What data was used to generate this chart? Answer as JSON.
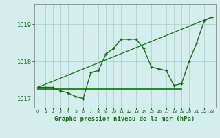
{
  "title": "Graphe pression niveau de la mer (hPa)",
  "x_values": [
    0,
    1,
    2,
    3,
    4,
    5,
    6,
    7,
    8,
    9,
    10,
    11,
    12,
    13,
    14,
    15,
    16,
    17,
    18,
    19,
    20,
    21,
    22,
    23
  ],
  "pressure_line": [
    1017.3,
    1017.3,
    1017.3,
    1017.2,
    1017.15,
    1017.05,
    1017.0,
    1017.7,
    1017.75,
    1018.2,
    1018.35,
    1018.6,
    1018.6,
    1018.6,
    1018.35,
    1017.85,
    1017.8,
    1017.75,
    1017.35,
    1017.4,
    1018.0,
    1018.5,
    1019.1,
    1019.2
  ],
  "trend_line_x": [
    0,
    23
  ],
  "trend_line_y": [
    1017.3,
    1019.2
  ],
  "min_line_x": [
    0,
    19
  ],
  "min_line_y": [
    1017.25,
    1017.25
  ],
  "line_color": "#1a6b1a",
  "bg_color": "#d4eeee",
  "grid_color": "#aacccc",
  "ylim": [
    1016.75,
    1019.55
  ],
  "yticks": [
    1017,
    1018,
    1019
  ],
  "xlim": [
    -0.5,
    23.5
  ],
  "title_fontsize": 6.5
}
